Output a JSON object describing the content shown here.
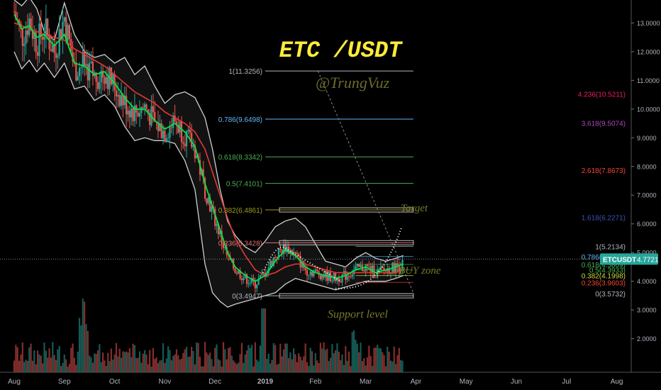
{
  "chart_data": {
    "type": "candlestick",
    "title": "ETC /USDT",
    "watermark": "@TrungVuz",
    "symbol_badge": {
      "symbol": "ETCUSDT",
      "price": "4.7721",
      "color": "#26a69a"
    },
    "price_axis": {
      "ylim": [
        1.2,
        13.8
      ],
      "ticks": [
        "13.0000",
        "12.0000",
        "11.0000",
        "10.0000",
        "9.0000",
        "8.0000",
        "7.0000",
        "6.0000",
        "5.0000",
        "4.0000",
        "3.0000",
        "2.0000"
      ],
      "tick_values": [
        13,
        12,
        11,
        10,
        9,
        8,
        7,
        6,
        5,
        4,
        3,
        2
      ]
    },
    "time_axis": {
      "labels": [
        "Aug",
        "Sep",
        "Oct",
        "Nov",
        "Dec",
        "2019",
        "Feb",
        "Mar",
        "Apr",
        "May",
        "Jun",
        "Jul",
        "Aug"
      ],
      "label_months": [
        0,
        1,
        2,
        3,
        4,
        5,
        6,
        7,
        8,
        9,
        10,
        11,
        12
      ],
      "xlim_months": [
        0,
        12.6
      ]
    },
    "current_price": 4.7721,
    "price_path": {
      "months": [
        0,
        0.15,
        0.3,
        0.45,
        0.6,
        0.8,
        1.0,
        1.2,
        1.4,
        1.6,
        1.8,
        2.0,
        2.2,
        2.4,
        2.6,
        2.8,
        3.0,
        3.2,
        3.4,
        3.6,
        3.8,
        3.95,
        4.1,
        4.25,
        4.4,
        4.6,
        4.8,
        5.0,
        5.2,
        5.4,
        5.6,
        5.8,
        6.0,
        6.2,
        6.4,
        6.6,
        6.8,
        7.0,
        7.2,
        7.4,
        7.6,
        7.75
      ],
      "closes": [
        13.4,
        12.5,
        13.1,
        12.3,
        12.8,
        12.0,
        13.2,
        11.4,
        11.6,
        11.1,
        11.3,
        10.8,
        10.2,
        9.9,
        10.1,
        9.5,
        9.2,
        9.6,
        9.1,
        8.6,
        7.2,
        6.4,
        5.6,
        4.8,
        4.4,
        4.1,
        3.9,
        4.3,
        4.9,
        5.2,
        4.9,
        4.4,
        4.3,
        4.2,
        4.1,
        4.2,
        4.4,
        4.5,
        4.3,
        4.4,
        4.5,
        4.6
      ]
    },
    "bollinger": {
      "upper": [
        13.8,
        13.6,
        13.9,
        13.5,
        12.7,
        12.4,
        13.7,
        12.6,
        12.0,
        11.8,
        11.9,
        11.6,
        11.8,
        11.2,
        11.5,
        10.8,
        10.2,
        10.5,
        10.6,
        10.4,
        9.7,
        8.6,
        7.2,
        6.1,
        5.6,
        5.2,
        5.0,
        5.4,
        5.9,
        6.1,
        6.2,
        5.9,
        5.3,
        4.7,
        4.6,
        4.5,
        4.8,
        5.0,
        4.8,
        4.7,
        4.8,
        4.9
      ],
      "lower": [
        12.0,
        11.4,
        11.7,
        11.3,
        11.6,
        11.1,
        11.6,
        10.7,
        10.8,
        10.3,
        10.5,
        10.1,
        9.4,
        8.9,
        9.0,
        8.9,
        8.9,
        8.8,
        8.2,
        7.2,
        4.6,
        3.6,
        3.3,
        3.1,
        3.2,
        3.3,
        3.4,
        3.5,
        3.6,
        3.9,
        4.1,
        4.0,
        3.9,
        3.8,
        3.7,
        3.8,
        3.9,
        4.0,
        4.0,
        4.0,
        4.1,
        4.2
      ]
    },
    "ma_fast": [
      13.3,
      12.8,
      12.9,
      12.5,
      12.6,
      12.2,
      12.6,
      11.6,
      11.5,
      11.2,
      11.3,
      10.9,
      10.4,
      10.0,
      10.0,
      9.6,
      9.3,
      9.5,
      9.2,
      8.7,
      7.4,
      6.6,
      5.8,
      5.0,
      4.5,
      4.2,
      4.0,
      4.2,
      4.7,
      5.1,
      4.9,
      4.5,
      4.3,
      4.2,
      4.1,
      4.2,
      4.4,
      4.5,
      4.3,
      4.4,
      4.5,
      4.6
    ],
    "ma_slow": [
      13.0,
      12.9,
      12.8,
      12.7,
      12.6,
      12.5,
      12.4,
      12.1,
      11.9,
      11.7,
      11.5,
      11.2,
      10.9,
      10.6,
      10.4,
      10.2,
      9.9,
      9.7,
      9.5,
      9.2,
      8.6,
      7.8,
      7.0,
      6.2,
      5.5,
      4.9,
      4.4,
      4.2,
      4.3,
      4.5,
      4.6,
      4.6,
      4.5,
      4.4,
      4.3,
      4.3,
      4.3,
      4.3,
      4.3,
      4.3,
      4.3,
      4.4
    ],
    "fib_retracement": {
      "x_start": 5.0,
      "x_end": 7.95,
      "levels": [
        {
          "label": "1(11.3256)",
          "value": 11.3256,
          "color": "#b2b5be"
        },
        {
          "label": "0.786(9.6498)",
          "value": 9.6498,
          "color": "#64b5f6"
        },
        {
          "label": "0.618(8.3342)",
          "value": 8.3342,
          "color": "#4caf50"
        },
        {
          "label": "0.5(7.4101)",
          "value": 7.4101,
          "color": "#4caf50"
        },
        {
          "label": "0.382(6.4861)",
          "value": 6.4861,
          "color": "#9e9d24"
        },
        {
          "label": "0.236(5.3428)",
          "value": 5.3428,
          "color": "#e57373"
        },
        {
          "label": "0(3.4947)",
          "value": 3.4947,
          "color": "#b2b5be"
        }
      ]
    },
    "fib_extension": {
      "levels": [
        {
          "label": "4.236(10.5211)",
          "value": 10.5211,
          "color": "#e91e63"
        },
        {
          "label": "3.618(9.5074)",
          "value": 9.5074,
          "color": "#ab47bc"
        },
        {
          "label": "2.618(7.8673)",
          "value": 7.8673,
          "color": "#f44336"
        },
        {
          "label": "1.618(6.2271)",
          "value": 6.2271,
          "color": "#3f51b5"
        },
        {
          "label": "1(5.2134)",
          "value": 5.2134,
          "color": "#b2b5be"
        },
        {
          "label": "0.786(4.8624)",
          "value": 4.8624,
          "color": "#64b5f6"
        },
        {
          "label": "0.618(4.5869)",
          "value": 4.5869,
          "color": "#4caf50"
        },
        {
          "label": "0.5(4.3933)",
          "value": 4.3933,
          "color": "#4caf50"
        },
        {
          "label": "0.382(4.1998)",
          "value": 4.1998,
          "color": "#cddc39"
        },
        {
          "label": "0.236(3.9603)",
          "value": 3.9603,
          "color": "#f44336"
        },
        {
          "label": "0(3.5732)",
          "value": 3.5732,
          "color": "#b2b5be"
        }
      ]
    },
    "annotations": {
      "target": "Target",
      "buy_zone": "BUY zone",
      "support": "Support level"
    },
    "colors": {
      "up": "#26a69a",
      "down": "#ef5350",
      "ma_fast": "#00e640",
      "ma_slow": "#e53935",
      "band": "#d0d0d0",
      "title": "#ffeb3b",
      "annotation": "#7a7a2a"
    },
    "grid": false
  }
}
